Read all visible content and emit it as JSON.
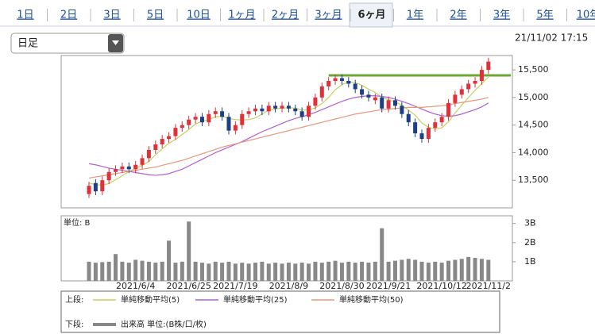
{
  "tabs": [
    "1日",
    "2日",
    "3日",
    "5日",
    "10日",
    "1ヶ月",
    "2ヶ月",
    "3ヶ月",
    "6ヶ月",
    "1年",
    "2年",
    "3年",
    "5年",
    "10年"
  ],
  "active_tab": 8,
  "dropdown": "日足",
  "timestamp": "21/11/02 17:15",
  "legend": {
    "upper": "上段:",
    "lower": "下段:"
  },
  "chart_data": [
    {
      "type": "candlestick",
      "up_color": "#e0303a",
      "down_color": "#1d3f85",
      "ylim": [
        13000,
        15760
      ],
      "yticks": [
        {
          "value": 13500,
          "label": "13,500"
        },
        {
          "value": 14000,
          "label": "14,000"
        },
        {
          "value": 14500,
          "label": "14,500"
        },
        {
          "value": 15000,
          "label": "15,000"
        },
        {
          "value": 15500,
          "label": "15,500"
        }
      ],
      "grid": false,
      "open": [
        13250,
        13450,
        13300,
        13500,
        13650,
        13700,
        13750,
        13700,
        13780,
        13900,
        14050,
        14150,
        14250,
        14300,
        14450,
        14500,
        14600,
        14650,
        14550,
        14700,
        14750,
        14650,
        14400,
        14500,
        14700,
        14750,
        14800,
        14750,
        14850,
        14800,
        14850,
        14800,
        14750,
        14650,
        14850,
        15000,
        15200,
        15300,
        15350,
        15300,
        15250,
        15150,
        15050,
        14950,
        15000,
        14800,
        14950,
        14850,
        14700,
        14550,
        14350,
        14250,
        14450,
        14550,
        14650,
        14900,
        15050,
        15150,
        15250,
        15300,
        15500
      ],
      "high": [
        13470,
        13520,
        13570,
        13720,
        13770,
        13820,
        13820,
        13850,
        13970,
        14120,
        14220,
        14320,
        14370,
        14520,
        14570,
        14670,
        14720,
        14720,
        14770,
        14820,
        14820,
        14720,
        14570,
        14770,
        14820,
        14870,
        14870,
        14920,
        14920,
        14920,
        14920,
        14870,
        14820,
        14920,
        15070,
        15270,
        15370,
        15420,
        15420,
        15370,
        15320,
        15220,
        15120,
        15070,
        15070,
        15020,
        15020,
        14920,
        14770,
        14620,
        14420,
        14520,
        14620,
        14720,
        14970,
        15120,
        15220,
        15320,
        15370,
        15570,
        15720
      ],
      "low": [
        13180,
        13230,
        13230,
        13430,
        13580,
        13630,
        13630,
        13630,
        13710,
        13830,
        13980,
        14080,
        14180,
        14230,
        14380,
        14430,
        14530,
        14480,
        14480,
        14630,
        14580,
        14330,
        14330,
        14430,
        14630,
        14680,
        14680,
        14680,
        14730,
        14730,
        14730,
        14680,
        14580,
        14580,
        14780,
        14930,
        15130,
        15230,
        15230,
        15180,
        15080,
        14980,
        14930,
        14880,
        14730,
        14730,
        14780,
        14630,
        14480,
        14280,
        14180,
        14180,
        14380,
        14480,
        14580,
        14830,
        14980,
        15080,
        15180,
        15230,
        15430
      ],
      "close": [
        13400,
        13300,
        13500,
        13650,
        13700,
        13750,
        13700,
        13780,
        13900,
        14050,
        14150,
        14250,
        14300,
        14450,
        14500,
        14600,
        14650,
        14550,
        14700,
        14750,
        14650,
        14400,
        14500,
        14700,
        14750,
        14800,
        14750,
        14850,
        14800,
        14850,
        14800,
        14750,
        14650,
        14850,
        15000,
        15200,
        15300,
        15350,
        15300,
        15250,
        15150,
        15050,
        15000,
        15000,
        14800,
        14950,
        14850,
        14700,
        14550,
        14350,
        14250,
        14450,
        14550,
        14650,
        14900,
        15050,
        15150,
        15250,
        15300,
        15500,
        15650
      ],
      "series": [
        {
          "name": "単純移動平均(5)",
          "color": "#c3d160",
          "values": [
            13450,
            13420,
            13410,
            13440,
            13510,
            13580,
            13660,
            13720,
            13770,
            13840,
            13960,
            14070,
            14170,
            14240,
            14330,
            14420,
            14520,
            14570,
            14600,
            14650,
            14660,
            14620,
            14600,
            14590,
            14600,
            14630,
            14700,
            14770,
            14790,
            14810,
            14810,
            14810,
            14770,
            14780,
            14810,
            14890,
            15000,
            15140,
            15230,
            15280,
            15270,
            15220,
            15150,
            15090,
            15000,
            14960,
            14920,
            14860,
            14770,
            14680,
            14540,
            14460,
            14430,
            14450,
            14560,
            14720,
            14860,
            15000,
            15130,
            15250,
            15370
          ]
        },
        {
          "name": "単純移動平均(25)",
          "color": "#b05fd0",
          "values": [
            13800,
            13780,
            13750,
            13720,
            13700,
            13680,
            13660,
            13640,
            13620,
            13600,
            13590,
            13600,
            13620,
            13660,
            13700,
            13760,
            13820,
            13880,
            13940,
            14000,
            14050,
            14100,
            14150,
            14200,
            14260,
            14320,
            14380,
            14430,
            14480,
            14530,
            14580,
            14620,
            14650,
            14690,
            14730,
            14780,
            14830,
            14880,
            14930,
            14970,
            15000,
            15020,
            15030,
            15030,
            15020,
            15000,
            14970,
            14930,
            14890,
            14840,
            14790,
            14740,
            14700,
            14670,
            14660,
            14670,
            14700,
            14740,
            14780,
            14830,
            14900
          ]
        },
        {
          "name": "単純移動平均(50)",
          "color": "#e8977a",
          "values": [
            13540,
            13560,
            13580,
            13600,
            13620,
            13640,
            13660,
            13680,
            13700,
            13720,
            13740,
            13770,
            13800,
            13830,
            13860,
            13900,
            13940,
            13980,
            14020,
            14060,
            14100,
            14130,
            14160,
            14190,
            14220,
            14250,
            14280,
            14310,
            14340,
            14370,
            14400,
            14430,
            14460,
            14490,
            14520,
            14550,
            14580,
            14610,
            14640,
            14670,
            14700,
            14720,
            14740,
            14760,
            14780,
            14790,
            14800,
            14810,
            14820,
            14820,
            14820,
            14830,
            14840,
            14850,
            14870,
            14890,
            14910,
            14930,
            14950,
            14970,
            15000
          ]
        }
      ],
      "hline": {
        "value": 15400,
        "color": "#6aa832",
        "x": [
          36,
          60
        ]
      }
    },
    {
      "type": "bar",
      "unit_label": "単位: B",
      "categories": [
        null,
        null,
        null,
        null,
        null,
        null,
        null,
        "2021/6/4",
        null,
        null,
        null,
        null,
        null,
        null,
        null,
        "2021/6/25",
        null,
        null,
        null,
        null,
        null,
        null,
        "2021/7/19",
        null,
        null,
        null,
        null,
        null,
        null,
        null,
        "2021/8/9",
        null,
        null,
        null,
        null,
        null,
        null,
        null,
        "2021/8/30",
        null,
        null,
        null,
        null,
        null,
        null,
        "2021/9/21",
        null,
        null,
        null,
        null,
        null,
        null,
        null,
        "2021/10/12",
        null,
        null,
        null,
        null,
        null,
        null,
        "2021/11/2"
      ],
      "ylim": [
        0,
        3.4
      ],
      "yticks": [
        {
          "value": 1,
          "label": "1B"
        },
        {
          "value": 2,
          "label": "2B"
        },
        {
          "value": 3,
          "label": "3B"
        }
      ],
      "series": [
        {
          "name": "出来高 単位:(B株/口/枚)",
          "color": "#888888",
          "values": [
            1.0,
            0.95,
            0.98,
            1.0,
            1.4,
            1.0,
            0.95,
            1.1,
            1.05,
            1.0,
            0.95,
            1.0,
            2.1,
            0.95,
            1.0,
            3.1,
            1.0,
            0.95,
            0.9,
            1.0,
            0.95,
            1.0,
            0.9,
            0.95,
            0.9,
            0.95,
            1.0,
            0.9,
            0.95,
            0.9,
            0.95,
            0.9,
            0.95,
            0.9,
            1.0,
            0.95,
            1.0,
            1.05,
            0.95,
            1.0,
            0.95,
            1.0,
            0.95,
            1.0,
            2.75,
            1.0,
            1.05,
            1.1,
            1.15,
            1.1,
            1.0,
            0.95,
            1.0,
            0.95,
            1.05,
            1.1,
            1.15,
            1.25,
            1.2,
            1.15,
            1.1
          ]
        }
      ]
    }
  ]
}
